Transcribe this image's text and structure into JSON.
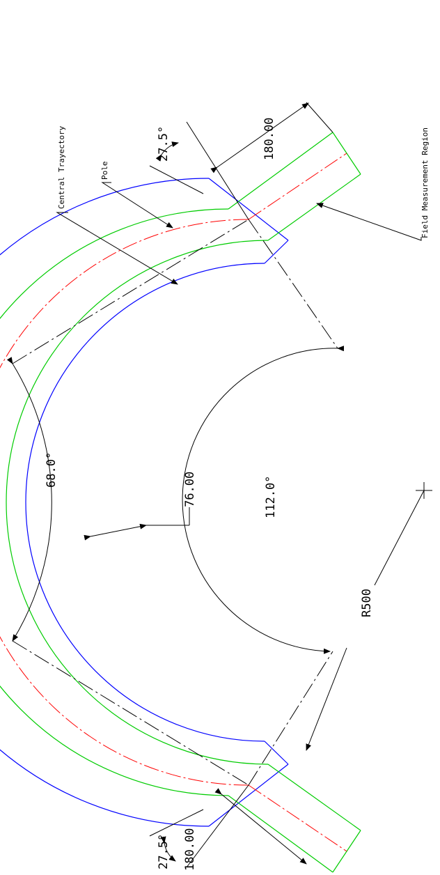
{
  "labels": {
    "field_region": "Field Measurement Region",
    "central_trajectory": "Central Trayectory",
    "pole": "Pole"
  },
  "dimensions": {
    "angle_top_edge": "27.5°",
    "length_top": "180.00",
    "angle_center": "112.0°",
    "angle_outer": "68.0°",
    "width": "76.00",
    "radius": "R500",
    "angle_bottom_edge": "27.5°",
    "length_bottom": "180.00"
  },
  "colors": {
    "pole": "#0000ff",
    "field_region": "#00cc00",
    "trajectory": "#ff0000",
    "construction": "#000000"
  }
}
